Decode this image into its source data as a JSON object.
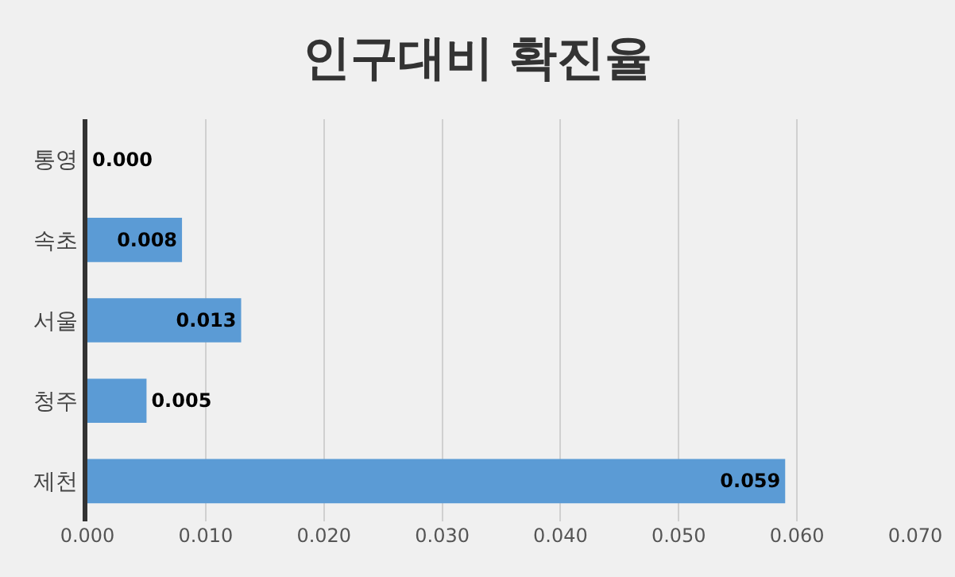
{
  "chart_data": {
    "type": "bar",
    "orientation": "horizontal",
    "title": "인구대비 확진율",
    "categories": [
      "통영",
      "속초",
      "서울",
      "청주",
      "제천"
    ],
    "values": [
      0.0,
      0.008,
      0.013,
      0.005,
      0.059
    ],
    "value_labels": [
      "0.000",
      "0.008",
      "0.013",
      "0.005",
      "0.059"
    ],
    "color": "#5b9bd5",
    "xlim": [
      0,
      0.07
    ],
    "xticks": [
      {
        "value": 0,
        "label": "0.000"
      },
      {
        "value": 0.01,
        "label": "0.010"
      },
      {
        "value": 0.02,
        "label": "0.020"
      },
      {
        "value": 0.03,
        "label": "0.030"
      },
      {
        "value": 0.04,
        "label": "0.040"
      },
      {
        "value": 0.05,
        "label": "0.050"
      },
      {
        "value": 0.06,
        "label": "0.060"
      },
      {
        "value": 0.07,
        "label": "0.070"
      }
    ],
    "grid": "x",
    "legend": false
  }
}
